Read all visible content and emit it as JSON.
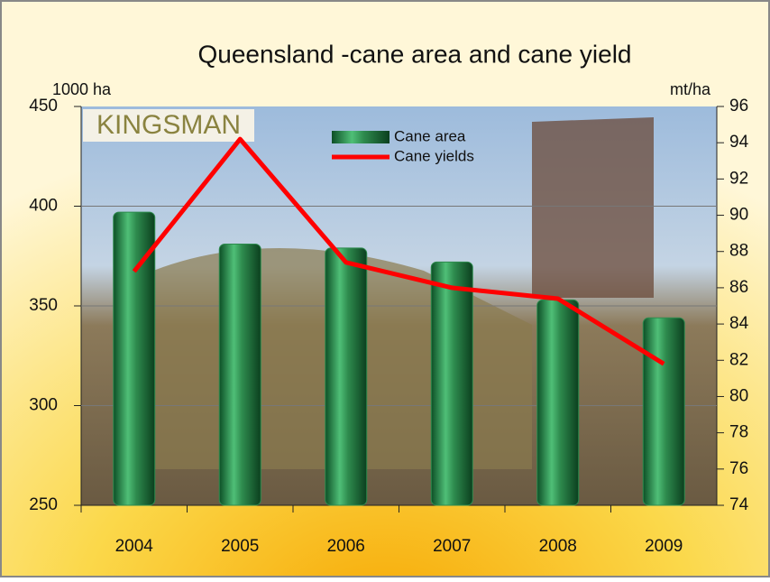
{
  "chart_data": {
    "type": "bar_line",
    "title": "Queensland -cane area and cane yield",
    "y_label": "1000 ha",
    "y2_label": "mt/ha",
    "logo": "KINGSMAN",
    "categories": [
      "2004",
      "2005",
      "2006",
      "2007",
      "2008",
      "2009"
    ],
    "series": [
      {
        "name": "Cane area",
        "type": "bar",
        "color": "#2e8b4e",
        "values": [
          397,
          381,
          379,
          372,
          353,
          344
        ]
      },
      {
        "name": "Cane yields",
        "type": "line",
        "color": "#ff0000",
        "axis": "y2",
        "values": [
          86.9,
          94.2,
          87.4,
          86.0,
          85.4,
          81.8
        ]
      }
    ],
    "ylim": [
      250,
      450
    ],
    "yticks": [
      250,
      300,
      350,
      400,
      450
    ],
    "y2lim": [
      74,
      96
    ],
    "y2ticks": [
      74,
      76,
      78,
      80,
      82,
      84,
      86,
      88,
      90,
      92,
      94,
      96
    ],
    "grid": true
  }
}
